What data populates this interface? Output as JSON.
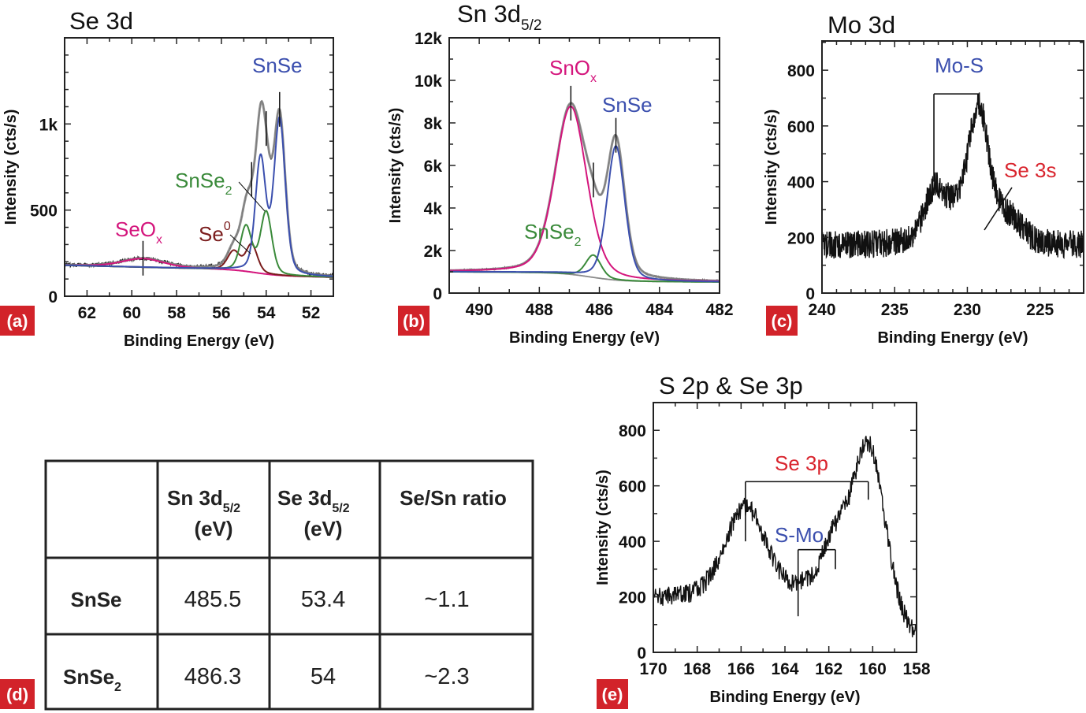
{
  "colors": {
    "snse": "#3b4fae",
    "snse2": "#3a8a3a",
    "se0": "#7a1c1c",
    "oxide": "#d4157c",
    "red_label": "#d9252e",
    "envelope": "#8a8a8a",
    "background": "#8a8a8a",
    "badge": "#d2232a"
  },
  "panel_letters": [
    "(a)",
    "(b)",
    "(c)",
    "(d)",
    "(e)"
  ],
  "chart_data": [
    {
      "type": "line",
      "panel": "(a)",
      "title": "Se 3d",
      "xlabel": "Binding Energy (eV)",
      "ylabel": "Intensity (cts/s)",
      "xlim": [
        63,
        51
      ],
      "ylim": [
        0,
        1500
      ],
      "x_reversed": true,
      "xticks": [
        62,
        60,
        58,
        56,
        54,
        52
      ],
      "xtick_labels": [
        "62",
        "60",
        "58",
        "56",
        "54",
        "52"
      ],
      "yticks": [
        0,
        500,
        1000
      ],
      "ytick_labels": [
        "0",
        "500",
        "1k"
      ],
      "background": {
        "left": 180,
        "right": 110
      },
      "components": [
        {
          "name": "SeOx",
          "label": "SeO",
          "label_sub": "x",
          "color_key": "oxide",
          "peaks": [
            {
              "center": 59.5,
              "amplitude": 50,
              "fwhm": 2.2
            }
          ],
          "marker": 59.5
        },
        {
          "name": "Se0",
          "label": "Se",
          "label_sup": "0",
          "color_key": "se0",
          "peaks": [
            {
              "center": 55.45,
              "amplitude": 110,
              "fwhm": 0.65
            },
            {
              "center": 54.65,
              "amplitude": 160,
              "fwhm": 0.6
            }
          ],
          "marker": 54.65
        },
        {
          "name": "SnSe2",
          "label": "SnSe",
          "label_sub": "2",
          "color_key": "snse2",
          "peaks": [
            {
              "center": 54.9,
              "amplitude": 260,
              "fwhm": 0.6
            },
            {
              "center": 54.0,
              "amplitude": 360,
              "fwhm": 0.6
            }
          ],
          "marker": 54.0
        },
        {
          "name": "SnSe",
          "label": "SnSe",
          "color_key": "snse",
          "peaks": [
            {
              "center": 54.25,
              "amplitude": 660,
              "fwhm": 0.55
            },
            {
              "center": 53.4,
              "amplitude": 900,
              "fwhm": 0.6
            }
          ],
          "marker": 53.4
        }
      ]
    },
    {
      "type": "line",
      "panel": "(b)",
      "title": "Sn 3d",
      "title_sub": "5/2",
      "xlabel": "Binding Energy (eV)",
      "ylabel": "Intensity (cts/s)",
      "xlim": [
        491,
        482
      ],
      "ylim": [
        0,
        12000
      ],
      "x_reversed": true,
      "xticks": [
        490,
        488,
        486,
        484,
        482
      ],
      "xtick_labels": [
        "490",
        "488",
        "486",
        "484",
        "482"
      ],
      "yticks": [
        0,
        2000,
        4000,
        6000,
        8000,
        10000,
        12000
      ],
      "ytick_labels": [
        "0",
        "2k",
        "4k",
        "6k",
        "8k",
        "10k",
        "12k"
      ],
      "background": {
        "left": 1000,
        "right": 520
      },
      "components": [
        {
          "name": "SnOx",
          "label": "SnO",
          "label_sub": "x",
          "color_key": "oxide",
          "peaks": [
            {
              "center": 486.95,
              "amplitude": 7900,
              "fwhm": 1.25
            }
          ],
          "marker": 486.95
        },
        {
          "name": "SnSe2",
          "label": "SnSe",
          "label_sub": "2",
          "color_key": "snse2",
          "peaks": [
            {
              "center": 486.2,
              "amplitude": 1050,
              "fwhm": 0.6
            }
          ],
          "marker": 486.2
        },
        {
          "name": "SnSe",
          "label": "SnSe",
          "color_key": "snse",
          "peaks": [
            {
              "center": 485.45,
              "amplitude": 6300,
              "fwhm": 0.7
            }
          ],
          "marker": 485.45
        }
      ]
    },
    {
      "type": "line",
      "panel": "(c)",
      "title": "Mo 3d",
      "xlabel": "Binding Energy (eV)",
      "ylabel": "Intensity (cts/s)",
      "xlim": [
        240,
        222
      ],
      "ylim": [
        0,
        905
      ],
      "x_reversed": true,
      "xticks": [
        240,
        235,
        230,
        225
      ],
      "xtick_labels": [
        "240",
        "235",
        "230",
        "225"
      ],
      "yticks": [
        0,
        200,
        400,
        600,
        800
      ],
      "ytick_labels": [
        "0",
        "200",
        "400",
        "600",
        "800"
      ],
      "baseline": 170,
      "peaks": [
        {
          "center": 232.3,
          "amplitude": 130,
          "fwhm": 1.6
        },
        {
          "center": 230.8,
          "amplitude": 120,
          "fwhm": 3.5
        },
        {
          "center": 229.2,
          "amplitude": 430,
          "fwhm": 1.6
        },
        {
          "center": 227.2,
          "amplitude": 90,
          "fwhm": 2.2
        }
      ],
      "annotations": [
        {
          "label": "Mo-S",
          "color_key": "snse",
          "positions": [
            232.3,
            229.2
          ]
        },
        {
          "label": "Se 3s",
          "color_key": "red_label",
          "positions": [
            227.5
          ]
        }
      ]
    },
    {
      "type": "line",
      "panel": "(e)",
      "title": "S 2p & Se 3p",
      "xlabel": "Binding Energy (eV)",
      "ylabel": "Intensity (cts/s)",
      "xlim": [
        170,
        158
      ],
      "ylim": [
        0,
        900
      ],
      "x_reversed": true,
      "xticks": [
        170,
        168,
        166,
        164,
        162,
        160,
        158
      ],
      "xtick_labels": [
        "170",
        "168",
        "166",
        "164",
        "162",
        "160",
        "158"
      ],
      "yticks": [
        0,
        200,
        400,
        600,
        800
      ],
      "ytick_labels": [
        "0",
        "200",
        "400",
        "600",
        "800"
      ],
      "baseline": 190,
      "peaks": [
        {
          "center": 165.8,
          "amplitude": 330,
          "fwhm": 2.2
        },
        {
          "center": 161.8,
          "amplitude": 170,
          "fwhm": 1.4
        },
        {
          "center": 160.2,
          "amplitude": 560,
          "fwhm": 1.8
        },
        {
          "center": 163.2,
          "amplitude": 20,
          "fwhm": 0.6
        }
      ],
      "annotations": [
        {
          "label": "Se 3p",
          "color_key": "red_label",
          "positions": [
            165.8,
            160.2
          ]
        },
        {
          "label": "S-Mo",
          "color_key": "snse",
          "positions": [
            163.4,
            161.7
          ]
        }
      ]
    }
  ],
  "table": {
    "panel": "(d)",
    "headers": [
      {
        "main": "",
        "sub": "",
        "unit": ""
      },
      {
        "main": "Sn 3d",
        "sub": "5/2",
        "unit": "(eV)"
      },
      {
        "main": "Se 3d",
        "sub": "5/2",
        "unit": "(eV)"
      },
      {
        "main": "Se/Sn ratio",
        "sub": "",
        "unit": ""
      }
    ],
    "rows": [
      {
        "name": "SnSe",
        "name_sub": "",
        "sn": "485.5",
        "se": "53.4",
        "ratio": "~1.1"
      },
      {
        "name": "SnSe",
        "name_sub": "2",
        "sn": "486.3",
        "se": "54",
        "ratio": "~2.3"
      }
    ]
  }
}
